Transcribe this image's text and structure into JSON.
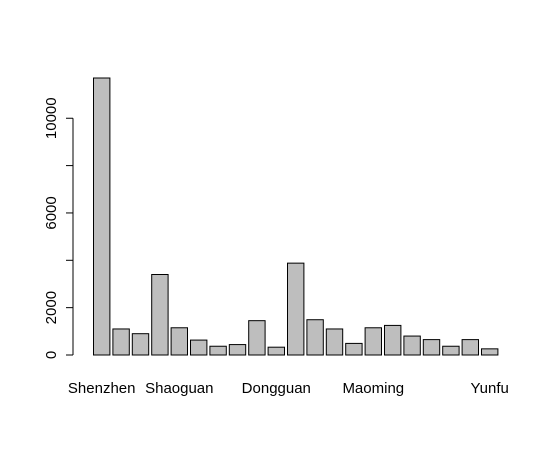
{
  "chart_data": {
    "type": "bar",
    "categories": [
      "Shenzhen",
      "",
      "",
      "",
      "Shaoguan",
      "",
      "",
      "",
      "",
      "Dongguan",
      "",
      "",
      "",
      "",
      "Maoming",
      "",
      "",
      "",
      "",
      "",
      "Yunfu"
    ],
    "values": [
      11700,
      1100,
      900,
      3400,
      1150,
      630,
      370,
      440,
      1450,
      330,
      3880,
      1490,
      1100,
      490,
      1150,
      1250,
      800,
      650,
      370,
      650,
      260
    ],
    "ylim": [
      0,
      11700
    ],
    "yticks": [
      0,
      2000,
      6000,
      10000
    ],
    "title": "",
    "xlabel": "",
    "ylabel": "",
    "colors": {
      "bar_fill": "#bebebe",
      "bar_stroke": "#000000"
    }
  }
}
